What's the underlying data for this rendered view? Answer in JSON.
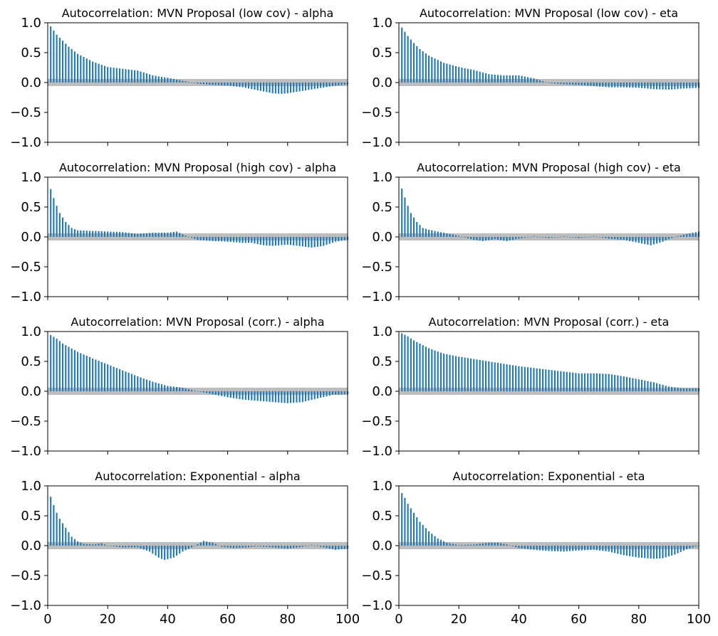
{
  "figure": {
    "title": "",
    "colors": {
      "bar": "#1f77b4",
      "band": "#bdbdbd",
      "axis": "#000000",
      "background": "#ffffff"
    }
  },
  "chart_data": [
    {
      "type": "bar",
      "title": "Autocorrelation: MVN Proposal (low cov) - alpha",
      "xlabel": "",
      "ylabel": "",
      "xlim": [
        0,
        100
      ],
      "ylim": [
        -1.0,
        1.0
      ],
      "xticks": [
        "0",
        "20",
        "40",
        "60",
        "80",
        "100"
      ],
      "yticks": [
        "1.0",
        "0.5",
        "0.0",
        "−0.5",
        "−1.0"
      ],
      "show_xtick_labels": false,
      "confidence_band": 0.06,
      "lags": [
        1,
        100
      ],
      "anchors": [
        [
          1,
          0.94
        ],
        [
          2,
          0.87
        ],
        [
          3,
          0.8
        ],
        [
          5,
          0.7
        ],
        [
          7,
          0.6
        ],
        [
          10,
          0.48
        ],
        [
          15,
          0.35
        ],
        [
          20,
          0.26
        ],
        [
          25,
          0.23
        ],
        [
          30,
          0.2
        ],
        [
          35,
          0.12
        ],
        [
          40,
          0.08
        ],
        [
          45,
          0.03
        ],
        [
          50,
          -0.02
        ],
        [
          55,
          -0.04
        ],
        [
          60,
          -0.05
        ],
        [
          65,
          -0.08
        ],
        [
          70,
          -0.13
        ],
        [
          75,
          -0.18
        ],
        [
          78,
          -0.19
        ],
        [
          80,
          -0.18
        ],
        [
          85,
          -0.14
        ],
        [
          90,
          -0.1
        ],
        [
          95,
          -0.06
        ],
        [
          100,
          -0.03
        ]
      ]
    },
    {
      "type": "bar",
      "title": "Autocorrelation: MVN Proposal (low cov) - eta",
      "xlabel": "",
      "ylabel": "",
      "xlim": [
        0,
        100
      ],
      "ylim": [
        -1.0,
        1.0
      ],
      "xticks": [
        "0",
        "20",
        "40",
        "60",
        "80",
        "100"
      ],
      "yticks": [
        "1.0",
        "0.5",
        "0.0",
        "−0.5",
        "−1.0"
      ],
      "show_xtick_labels": false,
      "confidence_band": 0.06,
      "lags": [
        1,
        100
      ],
      "anchors": [
        [
          1,
          0.92
        ],
        [
          2,
          0.85
        ],
        [
          3,
          0.78
        ],
        [
          5,
          0.66
        ],
        [
          7,
          0.56
        ],
        [
          10,
          0.45
        ],
        [
          15,
          0.33
        ],
        [
          20,
          0.26
        ],
        [
          25,
          0.21
        ],
        [
          30,
          0.14
        ],
        [
          35,
          0.12
        ],
        [
          40,
          0.12
        ],
        [
          45,
          0.07
        ],
        [
          50,
          -0.01
        ],
        [
          55,
          -0.03
        ],
        [
          60,
          -0.04
        ],
        [
          65,
          -0.06
        ],
        [
          70,
          -0.08
        ],
        [
          75,
          -0.08
        ],
        [
          80,
          -0.09
        ],
        [
          85,
          -0.11
        ],
        [
          90,
          -0.12
        ],
        [
          95,
          -0.1
        ],
        [
          100,
          -0.09
        ]
      ]
    },
    {
      "type": "bar",
      "title": "Autocorrelation: MVN Proposal (high cov) - alpha",
      "xlabel": "",
      "ylabel": "",
      "xlim": [
        0,
        100
      ],
      "ylim": [
        -1.0,
        1.0
      ],
      "xticks": [
        "0",
        "20",
        "40",
        "60",
        "80",
        "100"
      ],
      "yticks": [
        "1.0",
        "0.5",
        "0.0",
        "−0.5",
        "−1.0"
      ],
      "show_xtick_labels": false,
      "confidence_band": 0.06,
      "lags": [
        1,
        100
      ],
      "anchors": [
        [
          1,
          0.8
        ],
        [
          2,
          0.65
        ],
        [
          3,
          0.52
        ],
        [
          4,
          0.4
        ],
        [
          6,
          0.25
        ],
        [
          8,
          0.15
        ],
        [
          10,
          0.11
        ],
        [
          15,
          0.1
        ],
        [
          20,
          0.09
        ],
        [
          25,
          0.08
        ],
        [
          30,
          0.05
        ],
        [
          35,
          0.07
        ],
        [
          40,
          0.07
        ],
        [
          43,
          0.09
        ],
        [
          46,
          0.02
        ],
        [
          50,
          -0.05
        ],
        [
          55,
          -0.07
        ],
        [
          60,
          -0.08
        ],
        [
          65,
          -0.1
        ],
        [
          68,
          -0.1
        ],
        [
          72,
          -0.14
        ],
        [
          75,
          -0.15
        ],
        [
          80,
          -0.13
        ],
        [
          85,
          -0.16
        ],
        [
          88,
          -0.18
        ],
        [
          92,
          -0.15
        ],
        [
          96,
          -0.08
        ],
        [
          100,
          -0.05
        ]
      ]
    },
    {
      "type": "bar",
      "title": "Autocorrelation: MVN Proposal (high cov) - eta",
      "xlabel": "",
      "ylabel": "",
      "xlim": [
        0,
        100
      ],
      "ylim": [
        -1.0,
        1.0
      ],
      "xticks": [
        "0",
        "20",
        "40",
        "60",
        "80",
        "100"
      ],
      "yticks": [
        "1.0",
        "0.5",
        "0.0",
        "−0.5",
        "−1.0"
      ],
      "show_xtick_labels": false,
      "confidence_band": 0.06,
      "lags": [
        1,
        100
      ],
      "anchors": [
        [
          1,
          0.81
        ],
        [
          2,
          0.66
        ],
        [
          3,
          0.52
        ],
        [
          4,
          0.4
        ],
        [
          6,
          0.25
        ],
        [
          8,
          0.15
        ],
        [
          10,
          0.12
        ],
        [
          15,
          0.07
        ],
        [
          18,
          0.04
        ],
        [
          22,
          -0.01
        ],
        [
          25,
          -0.05
        ],
        [
          28,
          -0.07
        ],
        [
          32,
          -0.04
        ],
        [
          36,
          -0.07
        ],
        [
          40,
          -0.03
        ],
        [
          45,
          0.01
        ],
        [
          50,
          -0.02
        ],
        [
          55,
          0.01
        ],
        [
          60,
          -0.02
        ],
        [
          65,
          0.01
        ],
        [
          70,
          -0.03
        ],
        [
          75,
          -0.05
        ],
        [
          80,
          -0.1
        ],
        [
          84,
          -0.14
        ],
        [
          88,
          -0.08
        ],
        [
          92,
          0.0
        ],
        [
          96,
          0.05
        ],
        [
          100,
          0.09
        ]
      ]
    },
    {
      "type": "bar",
      "title": "Autocorrelation: MVN Proposal (corr.) - alpha",
      "xlabel": "",
      "ylabel": "",
      "xlim": [
        0,
        100
      ],
      "ylim": [
        -1.0,
        1.0
      ],
      "xticks": [
        "0",
        "20",
        "40",
        "60",
        "80",
        "100"
      ],
      "yticks": [
        "1.0",
        "0.5",
        "0.0",
        "−0.5",
        "−1.0"
      ],
      "show_xtick_labels": false,
      "confidence_band": 0.06,
      "lags": [
        1,
        100
      ],
      "anchors": [
        [
          1,
          0.94
        ],
        [
          3,
          0.88
        ],
        [
          5,
          0.8
        ],
        [
          10,
          0.66
        ],
        [
          15,
          0.55
        ],
        [
          20,
          0.45
        ],
        [
          25,
          0.35
        ],
        [
          30,
          0.25
        ],
        [
          35,
          0.16
        ],
        [
          40,
          0.09
        ],
        [
          45,
          0.06
        ],
        [
          50,
          0.0
        ],
        [
          55,
          -0.05
        ],
        [
          60,
          -0.1
        ],
        [
          65,
          -0.14
        ],
        [
          70,
          -0.16
        ],
        [
          75,
          -0.18
        ],
        [
          80,
          -0.2
        ],
        [
          85,
          -0.18
        ],
        [
          90,
          -0.12
        ],
        [
          95,
          -0.06
        ],
        [
          100,
          -0.05
        ]
      ]
    },
    {
      "type": "bar",
      "title": "Autocorrelation: MVN Proposal (corr.) - eta",
      "xlabel": "",
      "ylabel": "",
      "xlim": [
        0,
        100
      ],
      "ylim": [
        -1.0,
        1.0
      ],
      "xticks": [
        "0",
        "20",
        "40",
        "60",
        "80",
        "100"
      ],
      "yticks": [
        "1.0",
        "0.5",
        "0.0",
        "−0.5",
        "−1.0"
      ],
      "show_xtick_labels": false,
      "confidence_band": 0.06,
      "lags": [
        1,
        100
      ],
      "anchors": [
        [
          1,
          0.97
        ],
        [
          3,
          0.92
        ],
        [
          5,
          0.85
        ],
        [
          10,
          0.72
        ],
        [
          15,
          0.63
        ],
        [
          20,
          0.58
        ],
        [
          25,
          0.54
        ],
        [
          30,
          0.5
        ],
        [
          35,
          0.46
        ],
        [
          40,
          0.42
        ],
        [
          45,
          0.39
        ],
        [
          50,
          0.36
        ],
        [
          55,
          0.33
        ],
        [
          60,
          0.3
        ],
        [
          65,
          0.3
        ],
        [
          70,
          0.29
        ],
        [
          75,
          0.25
        ],
        [
          80,
          0.2
        ],
        [
          85,
          0.15
        ],
        [
          90,
          0.08
        ],
        [
          95,
          0.05
        ],
        [
          100,
          0.05
        ]
      ]
    },
    {
      "type": "bar",
      "title": "Autocorrelation: Exponential - alpha",
      "xlabel": "",
      "ylabel": "",
      "xlim": [
        0,
        100
      ],
      "ylim": [
        -1.0,
        1.0
      ],
      "xticks": [
        "0",
        "20",
        "40",
        "60",
        "80",
        "100"
      ],
      "yticks": [
        "1.0",
        "0.5",
        "0.0",
        "−0.5",
        "−1.0"
      ],
      "show_xtick_labels": true,
      "confidence_band": 0.06,
      "lags": [
        1,
        100
      ],
      "anchors": [
        [
          1,
          0.82
        ],
        [
          2,
          0.68
        ],
        [
          3,
          0.55
        ],
        [
          4,
          0.45
        ],
        [
          6,
          0.3
        ],
        [
          8,
          0.15
        ],
        [
          10,
          0.07
        ],
        [
          12,
          0.03
        ],
        [
          15,
          0.02
        ],
        [
          18,
          0.04
        ],
        [
          20,
          0.0
        ],
        [
          25,
          -0.03
        ],
        [
          30,
          -0.03
        ],
        [
          34,
          -0.1
        ],
        [
          37,
          -0.2
        ],
        [
          39,
          -0.24
        ],
        [
          42,
          -0.2
        ],
        [
          45,
          -0.1
        ],
        [
          48,
          -0.03
        ],
        [
          52,
          0.08
        ],
        [
          55,
          0.05
        ],
        [
          58,
          -0.02
        ],
        [
          62,
          -0.04
        ],
        [
          66,
          -0.03
        ],
        [
          70,
          -0.01
        ],
        [
          75,
          -0.03
        ],
        [
          80,
          -0.05
        ],
        [
          85,
          -0.02
        ],
        [
          88,
          0.01
        ],
        [
          92,
          -0.03
        ],
        [
          96,
          -0.07
        ],
        [
          100,
          -0.05
        ]
      ]
    },
    {
      "type": "bar",
      "title": "Autocorrelation: Exponential - eta",
      "xlabel": "",
      "ylabel": "",
      "xlim": [
        0,
        100
      ],
      "ylim": [
        -1.0,
        1.0
      ],
      "xticks": [
        "0",
        "20",
        "40",
        "60",
        "80",
        "100"
      ],
      "yticks": [
        "1.0",
        "0.5",
        "0.0",
        "−0.5",
        "−1.0"
      ],
      "show_xtick_labels": true,
      "confidence_band": 0.06,
      "lags": [
        1,
        100
      ],
      "anchors": [
        [
          1,
          0.88
        ],
        [
          2,
          0.8
        ],
        [
          3,
          0.7
        ],
        [
          5,
          0.55
        ],
        [
          7,
          0.4
        ],
        [
          10,
          0.24
        ],
        [
          13,
          0.12
        ],
        [
          16,
          0.05
        ],
        [
          20,
          0.01
        ],
        [
          25,
          0.02
        ],
        [
          30,
          0.05
        ],
        [
          33,
          0.05
        ],
        [
          36,
          0.02
        ],
        [
          40,
          -0.04
        ],
        [
          45,
          -0.07
        ],
        [
          50,
          -0.09
        ],
        [
          55,
          -0.1
        ],
        [
          60,
          -0.08
        ],
        [
          65,
          -0.07
        ],
        [
          70,
          -0.1
        ],
        [
          75,
          -0.16
        ],
        [
          80,
          -0.2
        ],
        [
          85,
          -0.22
        ],
        [
          88,
          -0.21
        ],
        [
          92,
          -0.15
        ],
        [
          96,
          -0.06
        ],
        [
          100,
          0.0
        ]
      ]
    }
  ]
}
